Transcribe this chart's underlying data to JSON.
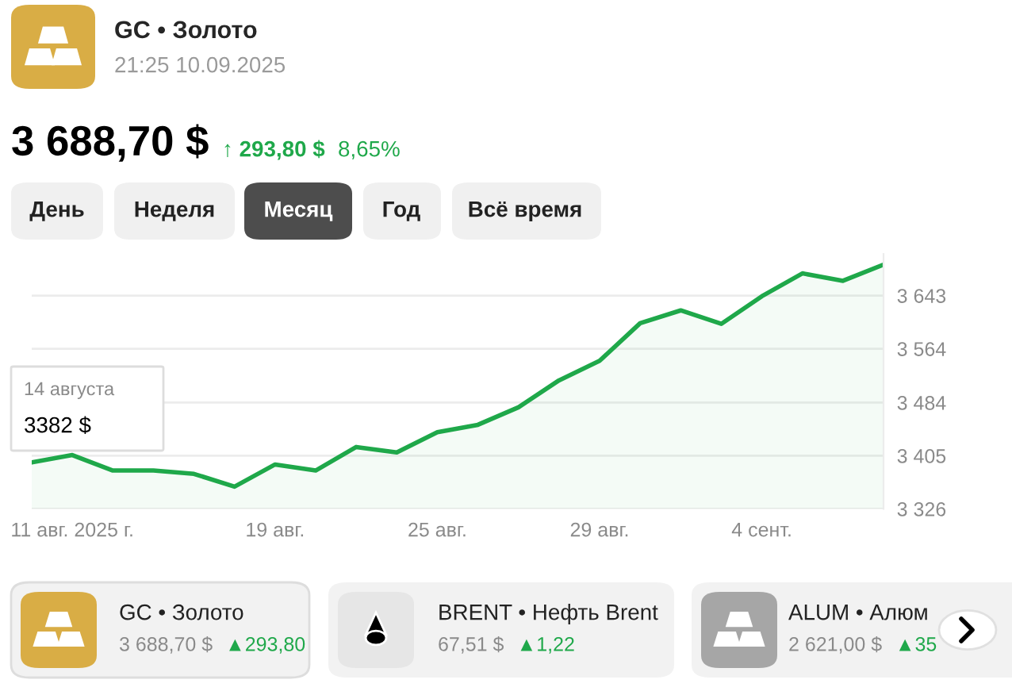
{
  "chart_data": {
    "type": "area",
    "title": "GC • Золото",
    "subtitle": "21:25 10.09.2025",
    "categories": [
      null,
      "11 авг. 2025 г.",
      null,
      null,
      null,
      null,
      "19 авг.",
      null,
      null,
      null,
      "25 авг.",
      null,
      null,
      null,
      "29 авг.",
      null,
      null,
      null,
      "4 сент.",
      null,
      null,
      null
    ],
    "series": [
      {
        "color": "#1fa84a",
        "values": [
          3395,
          3406,
          3383,
          3383,
          3378,
          3359,
          3392,
          3383,
          3418,
          3410,
          3440,
          3451,
          3477,
          3517,
          3546,
          3602,
          3621,
          3601,
          3642,
          3676,
          3665,
          3689
        ]
      }
    ],
    "ylim": [
      3326,
      3705
    ],
    "yticks": [
      {
        "value": 3326,
        "label": "3 326"
      },
      {
        "value": 3405,
        "label": "3 405"
      },
      {
        "value": 3484,
        "label": "3 484"
      },
      {
        "value": 3564,
        "label": "3 564"
      },
      {
        "value": 3643,
        "label": "3 643"
      }
    ],
    "grid": "y",
    "annotations": [
      "3 688,70 $",
      "↑ 293,80 $",
      "8,65%",
      "День",
      "Неделя",
      "Месяц",
      "Год",
      "Всё время",
      "14 августа",
      "3382 $",
      "GC • Золото",
      "3 688,70 $",
      "▲293,80",
      "BRENT • Нефть Brent",
      "67,51 $",
      "▲1,22",
      "ALUM • Алюм",
      "2 621,00 $",
      "▲35"
    ]
  }
}
